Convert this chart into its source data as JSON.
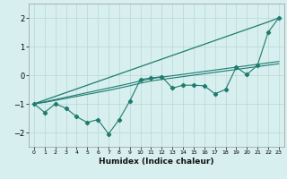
{
  "xlabel": "Humidex (Indice chaleur)",
  "bg_color": "#d7efef",
  "grid_color": "#b8d8d8",
  "line_color": "#1e7b6e",
  "xlim": [
    -0.5,
    23.5
  ],
  "ylim": [
    -2.5,
    2.5
  ],
  "xticks": [
    0,
    1,
    2,
    3,
    4,
    5,
    6,
    7,
    8,
    9,
    10,
    11,
    12,
    13,
    14,
    15,
    16,
    17,
    18,
    19,
    20,
    21,
    22,
    23
  ],
  "yticks": [
    -2,
    -1,
    0,
    1,
    2
  ],
  "x_data": [
    0,
    1,
    2,
    3,
    4,
    5,
    6,
    7,
    8,
    9,
    10,
    11,
    12,
    13,
    14,
    15,
    16,
    17,
    18,
    19,
    20,
    21,
    22,
    23
  ],
  "y_main": [
    -1.0,
    -1.3,
    -1.0,
    -1.15,
    -1.45,
    -1.65,
    -1.55,
    -2.05,
    -1.55,
    -0.9,
    -0.15,
    -0.1,
    -0.05,
    -0.45,
    -0.35,
    -0.35,
    -0.37,
    -0.65,
    -0.5,
    0.28,
    0.02,
    0.35,
    1.5,
    2.0
  ],
  "y_straight": [
    -1.0,
    -0.87,
    -0.74,
    -0.61,
    -0.48,
    -0.35,
    -0.22,
    -0.09,
    0.04,
    0.17,
    0.3,
    0.43,
    0.56,
    0.69,
    0.82,
    0.95,
    1.08,
    1.21,
    1.34,
    1.47,
    1.6,
    1.73,
    1.86,
    2.0
  ],
  "y_line2": [
    -1.0,
    -0.95,
    -0.88,
    -0.81,
    -0.74,
    -0.67,
    -0.6,
    -0.53,
    -0.45,
    -0.37,
    -0.28,
    -0.2,
    -0.15,
    -0.1,
    -0.05,
    0.0,
    0.05,
    0.1,
    0.15,
    0.2,
    0.25,
    0.3,
    0.35,
    0.4
  ],
  "y_line3": [
    -1.0,
    -0.93,
    -0.85,
    -0.77,
    -0.69,
    -0.61,
    -0.53,
    -0.45,
    -0.37,
    -0.29,
    -0.2,
    -0.12,
    -0.07,
    -0.02,
    0.03,
    0.08,
    0.13,
    0.18,
    0.23,
    0.28,
    0.33,
    0.38,
    0.43,
    0.48
  ]
}
